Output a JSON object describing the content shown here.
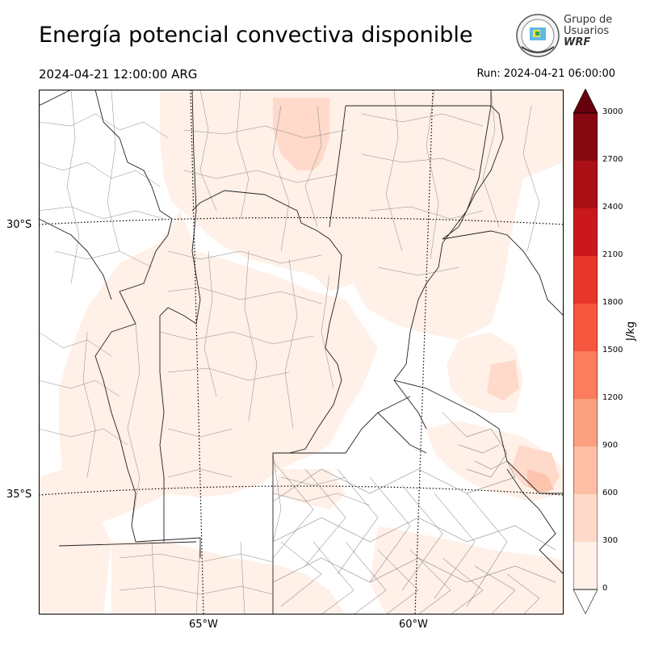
{
  "header": {
    "title": "Energía potencial convectiva disponible",
    "valid_time": "2024-04-21 12:00:00 ARG",
    "run_time": "Run: 2024-04-21 06:00:00"
  },
  "logo": {
    "line1": "Grupo de",
    "line2": "Usuarios",
    "line3": "WRF",
    "icon": "globe-seal-icon"
  },
  "map": {
    "lat_labels": [
      "30°S",
      "35°S"
    ],
    "lon_labels": [
      "65°W",
      "60°W"
    ],
    "field_colors": {
      "low": "#fff0e8",
      "mid": "#ffd9c9",
      "high": "#fcc4ad"
    }
  },
  "colorbar": {
    "unit": "J/kg",
    "ticks": [
      "0",
      "300",
      "600",
      "900",
      "1200",
      "1500",
      "1800",
      "2100",
      "2400",
      "2700",
      "3000"
    ],
    "colors": [
      "#fff0e8",
      "#fed9c9",
      "#fdbea5",
      "#fca082",
      "#fb7d5d",
      "#f6573e",
      "#e8362a",
      "#cb181d",
      "#ab1016",
      "#860811"
    ],
    "over_color": "#67000d"
  }
}
